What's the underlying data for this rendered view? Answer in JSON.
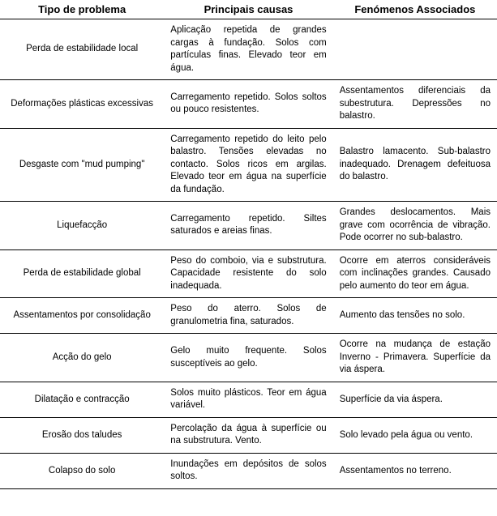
{
  "table": {
    "columns": [
      "Tipo de problema",
      "Principais causas",
      "Fenómenos Associados"
    ],
    "column_widths_pct": [
      33,
      34,
      33
    ],
    "header_fontsize_pt": 13,
    "cell_fontsize_pt": 11.5,
    "border_color": "#000000",
    "background_color": "#ffffff",
    "text_color": "#000000",
    "rows": [
      {
        "type": "Perda de estabilidade local",
        "cause": "Aplicação repetida de grandes cargas à fundação. Solos com partículas finas. Elevado teor em água.",
        "assoc": ""
      },
      {
        "type": "Deformações plásticas excessivas",
        "cause": "Carregamento repetido. Solos soltos ou pouco resistentes.",
        "assoc": "Assentamentos diferenciais da subestrutura. Depressões no balastro."
      },
      {
        "type": "Desgaste com \"mud pumping\"",
        "cause": "Carregamento repetido do leito pelo balastro. Tensões elevadas no contacto. Solos ricos em argilas. Elevado teor em água na superfície da fundação.",
        "assoc": "Balastro lamacento. Sub-balastro inadequado. Drenagem defeituosa do balastro."
      },
      {
        "type": "Liquefacção",
        "cause": "Carregamento repetido. Siltes saturados e areias finas.",
        "assoc": "Grandes deslocamentos. Mais grave com ocorrência de vibração. Pode ocorrer no sub-balastro."
      },
      {
        "type": "Perda de estabilidade global",
        "cause": "Peso do comboio, via e substrutura. Capacidade resistente do solo inadequada.",
        "assoc": "Ocorre em aterros consideráveis com inclinações grandes. Causado pelo aumento do teor em água."
      },
      {
        "type": "Assentamentos por consolidação",
        "cause": "Peso do aterro. Solos de granulometria fina, saturados.",
        "assoc": "Aumento das tensões no solo."
      },
      {
        "type": "Acção do gelo",
        "cause": "Gelo muito frequente. Solos susceptíveis ao gelo.",
        "assoc": "Ocorre na mudança de estação Inverno - Primavera. Superfície da via áspera."
      },
      {
        "type": "Dilatação e contracção",
        "cause": "Solos muito plásticos. Teor em água variável.",
        "assoc": "Superfície da via áspera."
      },
      {
        "type": "Erosão dos taludes",
        "cause": "Percolação da água à superfície ou na substrutura. Vento.",
        "assoc": "Solo levado pela água ou vento."
      },
      {
        "type": "Colapso do solo",
        "cause": "Inundações em depósitos de solos soltos.",
        "assoc": "Assentamentos no terreno."
      }
    ]
  }
}
